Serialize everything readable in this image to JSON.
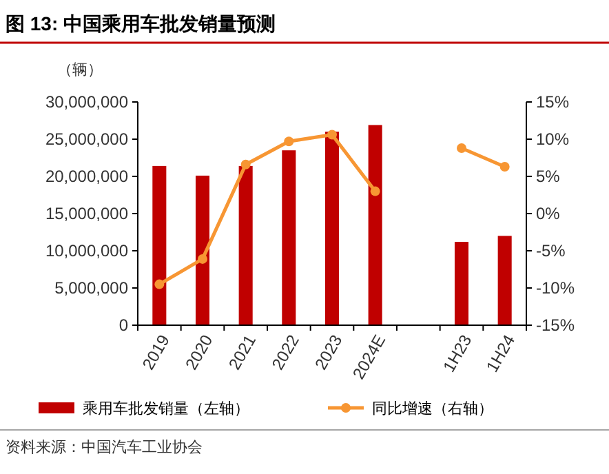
{
  "chart_data": {
    "type": "bar",
    "title": "图 13: 中国乘用车批发销量预测",
    "ylabel": "（辆）",
    "categories": [
      "2019",
      "2020",
      "2021",
      "2022",
      "2023",
      "2024E",
      null,
      "1H23",
      "1H24"
    ],
    "series": [
      {
        "name": "乘用车批发销量（左轴）",
        "color": "#c00000",
        "values": [
          21400000,
          20100000,
          21400000,
          23500000,
          26000000,
          26900000,
          null,
          11200000,
          12000000
        ]
      },
      {
        "name": "同比增速（右轴）",
        "type": "line",
        "axis": "y2",
        "color": "#f79633",
        "marker": "circle",
        "values": [
          -9.5,
          -6.1,
          6.6,
          9.7,
          10.6,
          3.0,
          null,
          8.8,
          6.3
        ]
      }
    ],
    "ylim": [
      0,
      30000000
    ],
    "yticks": [
      {
        "value": 0,
        "label": "0"
      },
      {
        "value": 5000000,
        "label": "5,000,000"
      },
      {
        "value": 10000000,
        "label": "10,000,000"
      },
      {
        "value": 15000000,
        "label": "15,000,000"
      },
      {
        "value": 20000000,
        "label": "20,000,000"
      },
      {
        "value": 25000000,
        "label": "25,000,000"
      },
      {
        "value": 30000000,
        "label": "30,000,000"
      }
    ],
    "y2lim": [
      -15,
      15
    ],
    "y2ticks": [
      {
        "value": -15,
        "label": "-15%"
      },
      {
        "value": -10,
        "label": "-10%"
      },
      {
        "value": -5,
        "label": "-5%"
      },
      {
        "value": 0,
        "label": "0%"
      },
      {
        "value": 5,
        "label": "5%"
      },
      {
        "value": 10,
        "label": "10%"
      },
      {
        "value": 15,
        "label": "15%"
      }
    ],
    "legend": "bottom",
    "grid": false,
    "annotations": [
      "资料来源：中国汽车工业协会"
    ]
  }
}
